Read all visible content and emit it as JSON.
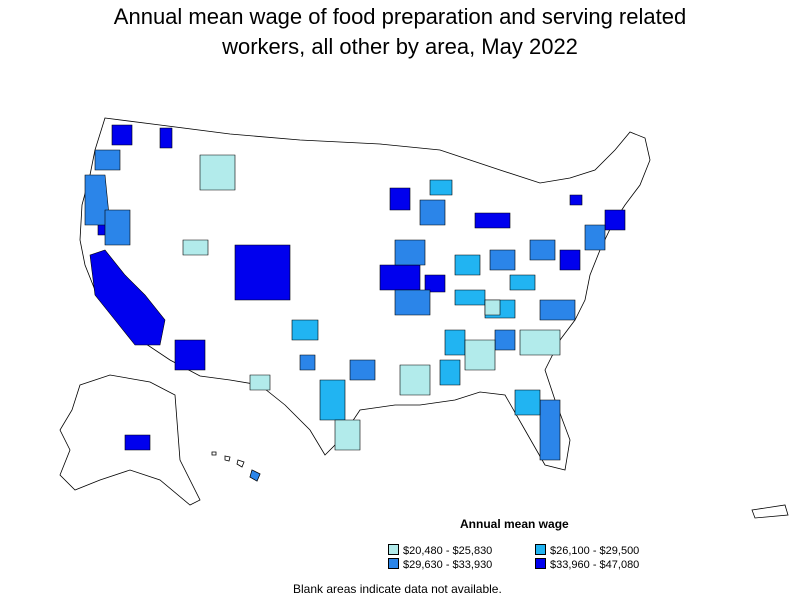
{
  "title_line1": "Annual mean wage of food preparation and serving related",
  "title_line2": "workers, all other by area, May 2022",
  "legend": {
    "title": "Annual mean wage",
    "items": [
      {
        "label": "$20,480 - $25,830",
        "color": "#b2ebeb"
      },
      {
        "label": "$26,100 - $29,500",
        "color": "#21b4f2"
      },
      {
        "label": "$29,630 - $33,930",
        "color": "#2b85e9"
      },
      {
        "label": "$33,960 - $47,080",
        "color": "#0000ee"
      }
    ]
  },
  "note": "Blank areas indicate data not available.",
  "colors": {
    "background": "#ffffff",
    "outline": "#000000"
  }
}
